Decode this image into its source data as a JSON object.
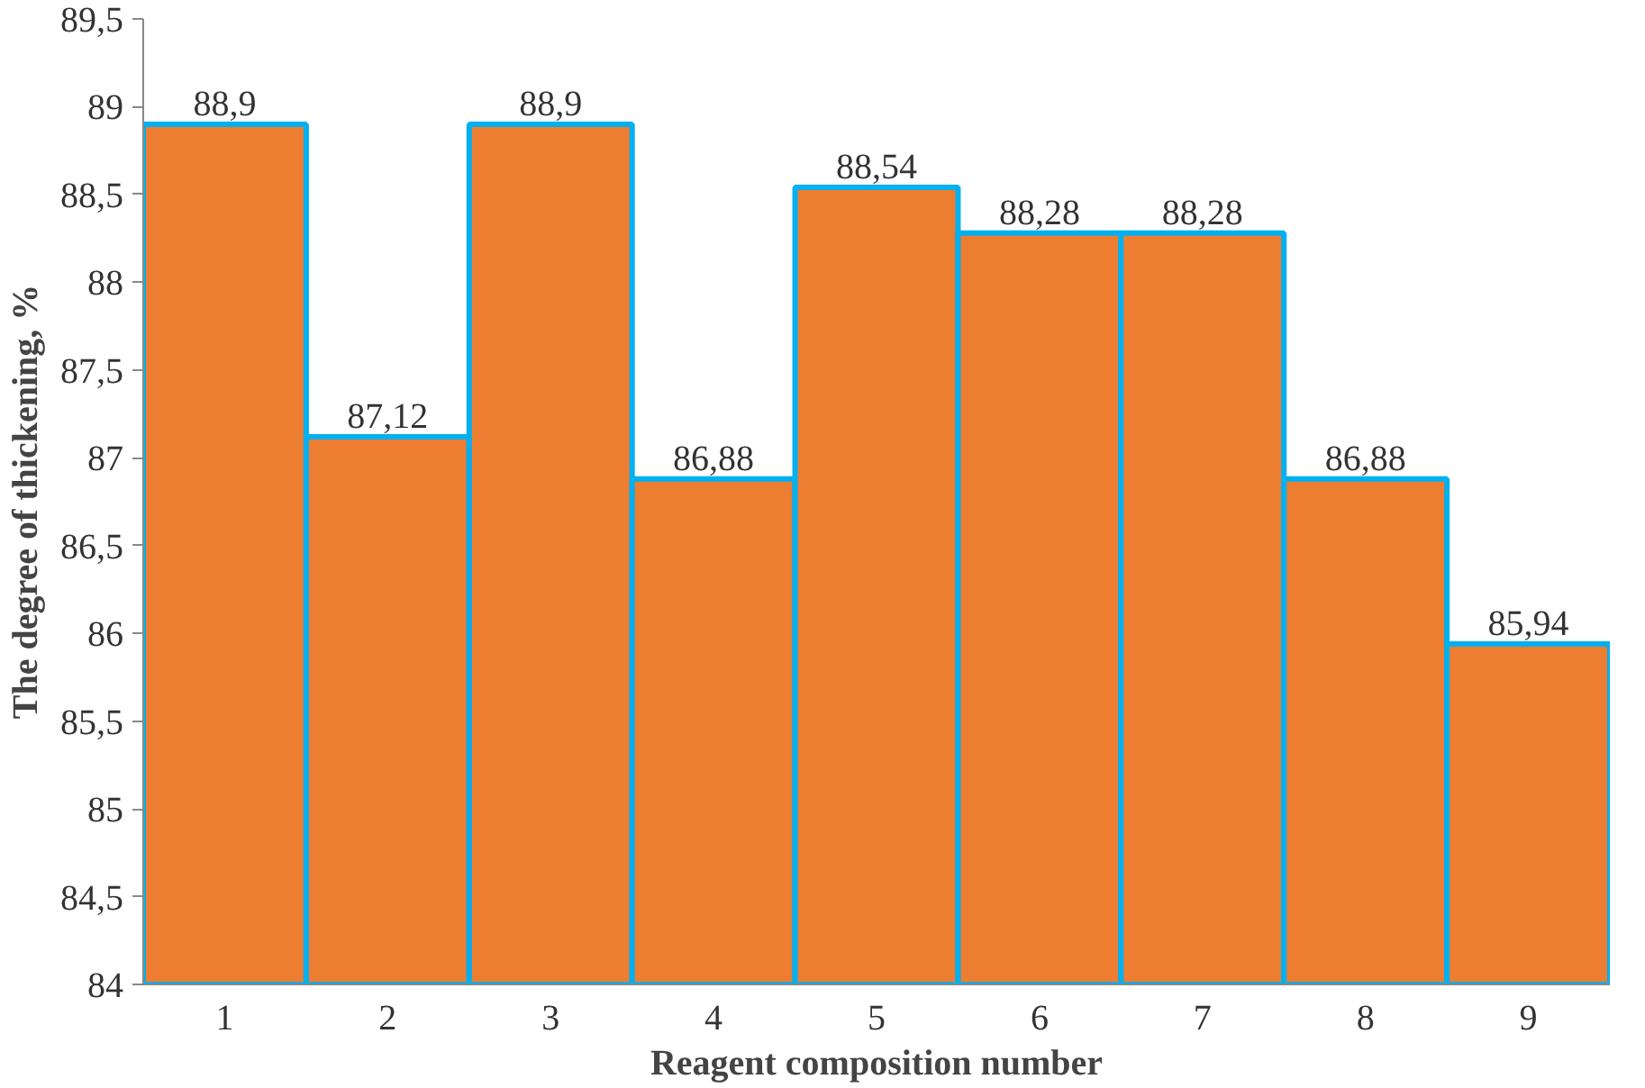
{
  "chart_data": {
    "type": "bar",
    "xlabel": "Reagent composition number",
    "ylabel": "The degree of thickening, %",
    "categories": [
      "1",
      "2",
      "3",
      "4",
      "5",
      "6",
      "7",
      "8",
      "9"
    ],
    "values": [
      88.9,
      87.12,
      88.9,
      86.88,
      88.54,
      88.28,
      88.28,
      86.88,
      85.94
    ],
    "value_labels": [
      "88,9",
      "87,12",
      "88,9",
      "86,88",
      "88,54",
      "88,28",
      "88,28",
      "86,88",
      "85,94"
    ],
    "color": "#ed7d31",
    "ylim": [
      84,
      89.5
    ],
    "yticks": [
      84,
      {
        "value": 84.5,
        "label": "84,5"
      },
      85,
      {
        "value": 85.5,
        "label": "85,5"
      },
      86,
      {
        "value": 86.5,
        "label": "86,5"
      },
      87,
      {
        "value": 87.5,
        "label": "87,5"
      },
      88,
      {
        "value": 88.5,
        "label": "88,5"
      },
      89,
      {
        "value": 89.5,
        "label": "89,5"
      }
    ],
    "grid": false
  }
}
